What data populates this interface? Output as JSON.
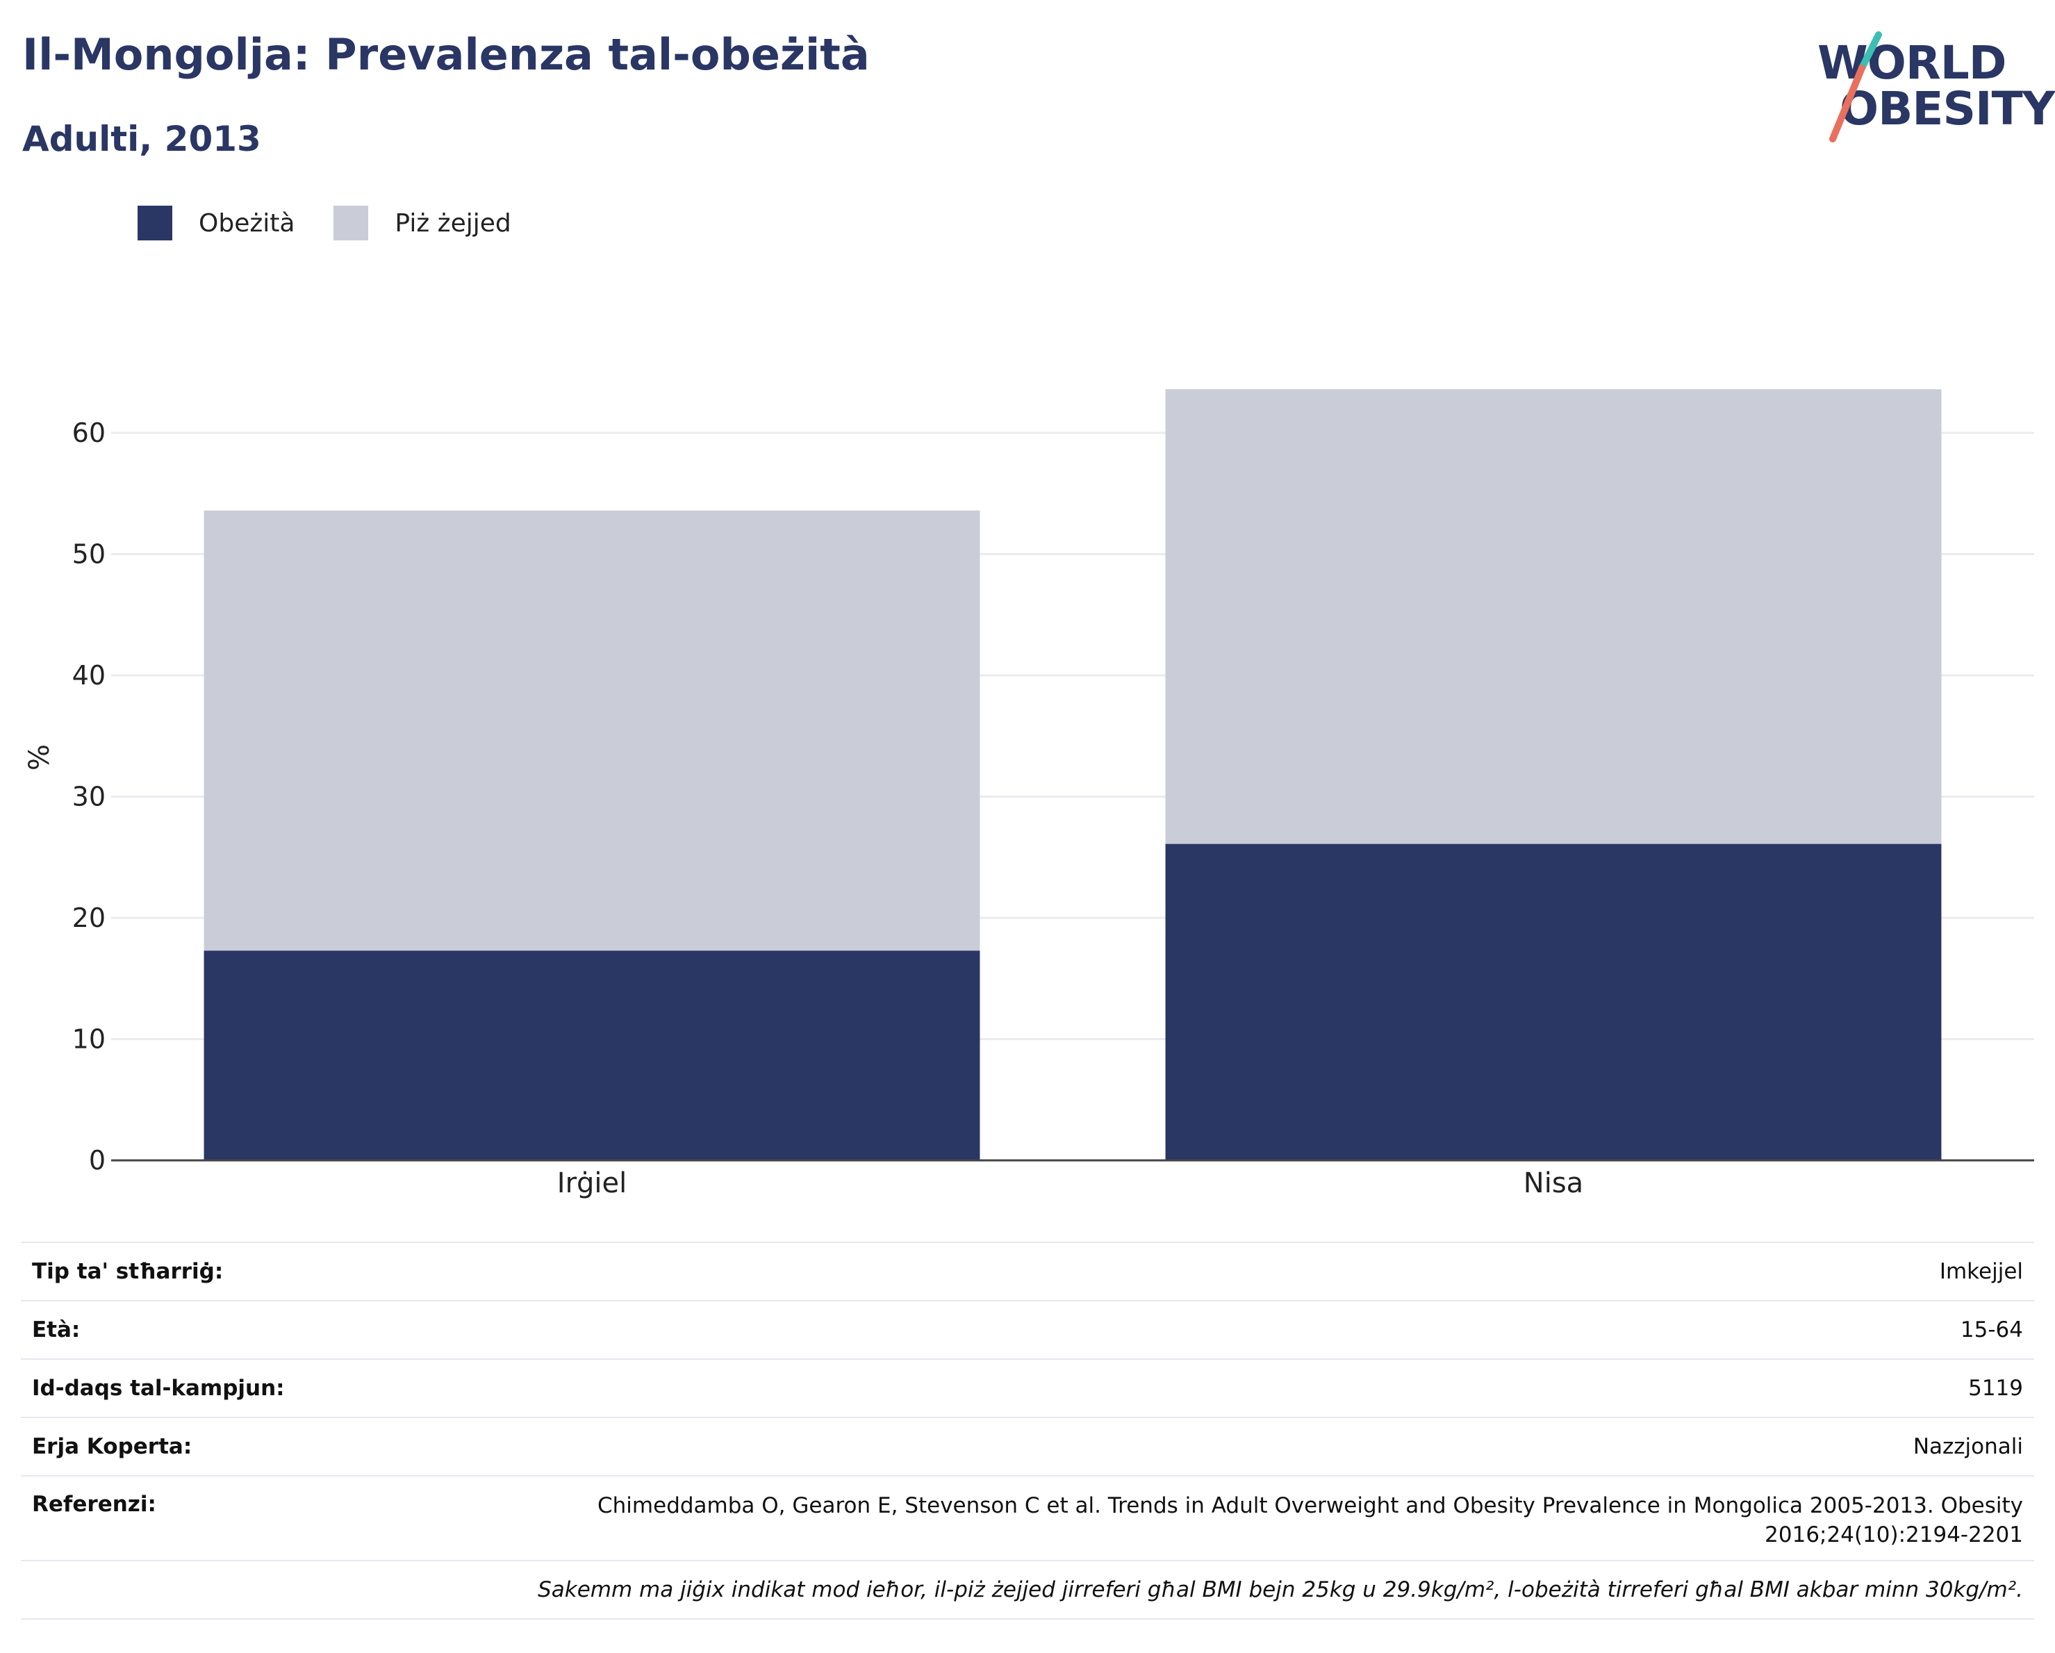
{
  "header": {
    "title": "Il-Mongolja: Prevalenza tal-obeżità",
    "subtitle": "Adulti, 2013"
  },
  "logo": {
    "line1": "WORLD",
    "line2": "OBESITY",
    "colors": {
      "text": "#2a3664",
      "slash_teal": "#3bbfb4",
      "slash_coral": "#e8705d"
    }
  },
  "legend": [
    {
      "label": "Obeżità",
      "color": "#2a3664"
    },
    {
      "label": "Piż żejjed",
      "color": "#cacdd8"
    }
  ],
  "chart_data": {
    "type": "bar",
    "stacked": true,
    "categories": [
      "Irġiel",
      "Nisa"
    ],
    "series": [
      {
        "name": "Obeżità",
        "values": [
          17.3,
          26.1
        ],
        "color": "#2a3664"
      },
      {
        "name": "Piż żejjed",
        "values": [
          36.3,
          37.5
        ],
        "color": "#cacdd8"
      }
    ],
    "ylabel": "%",
    "ylim": [
      0,
      67
    ],
    "yticks": [
      0,
      10,
      20,
      30,
      40,
      50,
      60
    ],
    "grid": true,
    "legend_position": "top-left"
  },
  "info": {
    "rows": [
      {
        "key": "Tip ta' stħarriġ:",
        "value": "Imkejjel"
      },
      {
        "key": "Età:",
        "value": "15-64"
      },
      {
        "key": "Id-daqs tal-kampjun:",
        "value": "5119"
      },
      {
        "key": "Erja Koperta:",
        "value": "Nazzjonali"
      }
    ],
    "reference_key": "Referenzi:",
    "reference_value": "Chimeddamba O, Gearon E, Stevenson C et al. Trends in Adult Overweight and Obesity Prevalence in Mongolica 2005-2013. Obesity 2016;24(10):2194-2201",
    "note": "Sakemm ma jiġix indikat mod ieħor, il-piż żejjed jirreferi għal BMI bejn 25kg u 29.9kg/m², l-obeżità tirreferi għal BMI akbar minn 30kg/m²."
  }
}
